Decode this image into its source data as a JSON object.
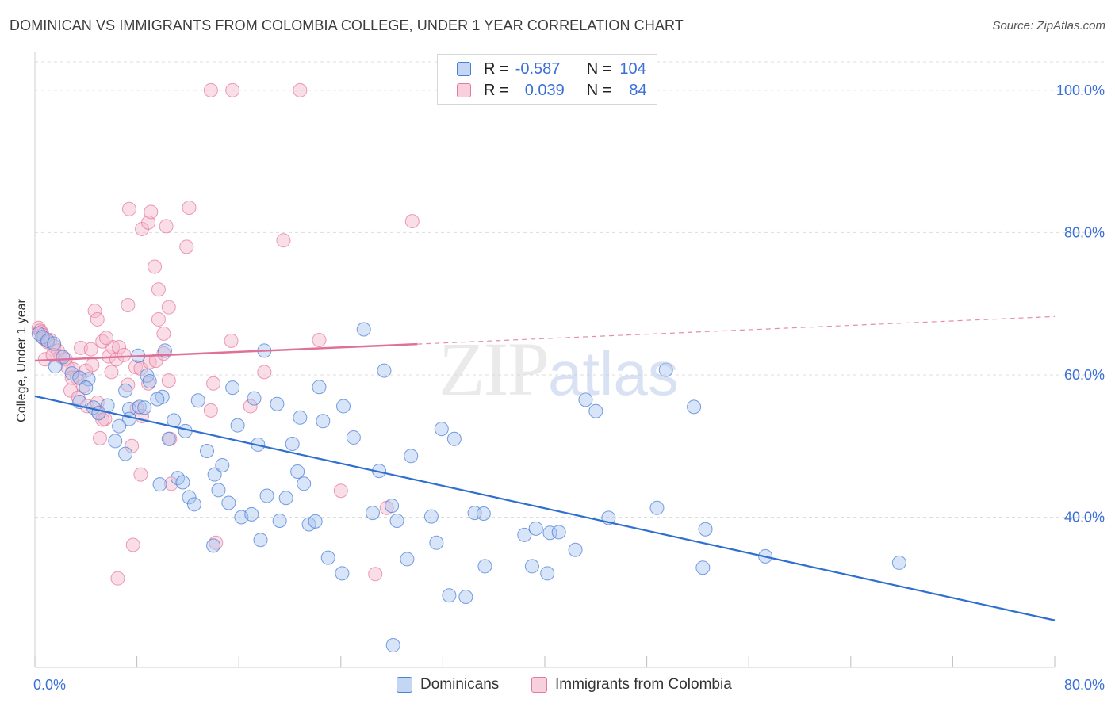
{
  "header": {
    "title": "DOMINICAN VS IMMIGRANTS FROM COLOMBIA COLLEGE, UNDER 1 YEAR CORRELATION CHART",
    "source": "Source: ZipAtlas.com"
  },
  "watermark": {
    "zip": "ZIP",
    "atlas": "atlas"
  },
  "legend": {
    "rows": [
      {
        "r_label": "R =",
        "r_value": "-0.587",
        "n_label": "N =",
        "n_value": "104"
      },
      {
        "r_label": "R =",
        "r_value": "0.039",
        "n_label": "N =",
        "n_value": "84"
      }
    ]
  },
  "colors": {
    "blue": "#4a7fd6",
    "blue_fill": "#a9c4ee",
    "blue_line": "#2f6fd0",
    "pink": "#e57aa0",
    "pink_fill": "#f3b6ca",
    "pink_line": "#e0709a",
    "tick_text": "#3a6fd8",
    "grid": "#dddddd"
  },
  "chart_data": {
    "type": "scatter",
    "title": "DOMINICAN VS IMMIGRANTS FROM COLOMBIA COLLEGE, UNDER 1 YEAR CORRELATION CHART",
    "xlabel": "",
    "ylabel": "College, Under 1 year",
    "xlim": [
      0,
      80
    ],
    "ylim": [
      20,
      104
    ],
    "x_tick_labels": [
      "0.0%",
      "80.0%"
    ],
    "y_ticks": [
      40,
      60,
      80,
      100
    ],
    "y_tick_labels": [
      "40.0%",
      "60.0%",
      "80.0%",
      "100.0%"
    ],
    "grid": true,
    "legend_position": "bottom",
    "series": [
      {
        "name": "Dominicans",
        "color": "#4a7fd6",
        "r": -0.587,
        "n": 104,
        "trend": {
          "x": [
            0,
            80
          ],
          "y": [
            57.0,
            25.5
          ],
          "dashed_from": null
        },
        "points": [
          [
            0.3,
            65.8
          ],
          [
            0.6,
            65.3
          ],
          [
            1.0,
            64.8
          ],
          [
            1.5,
            64.4
          ],
          [
            2.2,
            62.5
          ],
          [
            1.6,
            61.2
          ],
          [
            2.9,
            60.2
          ],
          [
            4.2,
            59.4
          ],
          [
            3.5,
            59.6
          ],
          [
            4.0,
            58.2
          ],
          [
            3.5,
            56.2
          ],
          [
            4.6,
            55.4
          ],
          [
            5.0,
            54.6
          ],
          [
            5.7,
            55.7
          ],
          [
            7.1,
            57.8
          ],
          [
            7.4,
            55.2
          ],
          [
            7.4,
            53.8
          ],
          [
            8.2,
            55.5
          ],
          [
            8.6,
            55.4
          ],
          [
            8.1,
            62.7
          ],
          [
            8.8,
            59.9
          ],
          [
            9.0,
            59.1
          ],
          [
            10.2,
            63.4
          ],
          [
            10.0,
            56.9
          ],
          [
            9.6,
            56.6
          ],
          [
            10.9,
            53.6
          ],
          [
            10.5,
            51.0
          ],
          [
            6.3,
            50.7
          ],
          [
            7.1,
            48.9
          ],
          [
            11.8,
            52.1
          ],
          [
            12.8,
            56.4
          ],
          [
            13.5,
            49.3
          ],
          [
            15.5,
            58.2
          ],
          [
            15.9,
            52.9
          ],
          [
            17.2,
            56.7
          ],
          [
            17.5,
            50.2
          ],
          [
            19.0,
            55.9
          ],
          [
            18.0,
            63.4
          ],
          [
            20.2,
            50.3
          ],
          [
            20.8,
            54.0
          ],
          [
            22.3,
            58.3
          ],
          [
            22.6,
            53.5
          ],
          [
            24.2,
            55.6
          ],
          [
            25.0,
            51.2
          ],
          [
            25.8,
            66.4
          ],
          [
            27.4,
            60.6
          ],
          [
            27.0,
            46.5
          ],
          [
            29.5,
            48.6
          ],
          [
            31.9,
            52.4
          ],
          [
            32.9,
            51.0
          ],
          [
            11.2,
            45.5
          ],
          [
            11.6,
            44.9
          ],
          [
            9.8,
            44.6
          ],
          [
            12.1,
            42.8
          ],
          [
            12.5,
            41.8
          ],
          [
            14.1,
            46.0
          ],
          [
            14.7,
            47.3
          ],
          [
            14.4,
            43.8
          ],
          [
            15.2,
            42.0
          ],
          [
            16.2,
            40.0
          ],
          [
            17.0,
            40.4
          ],
          [
            18.2,
            43.0
          ],
          [
            19.7,
            42.7
          ],
          [
            19.2,
            39.5
          ],
          [
            20.6,
            46.4
          ],
          [
            21.1,
            44.7
          ],
          [
            21.5,
            39.0
          ],
          [
            22.0,
            39.4
          ],
          [
            23.0,
            34.3
          ],
          [
            24.1,
            32.1
          ],
          [
            17.7,
            36.8
          ],
          [
            14.0,
            36.0
          ],
          [
            26.5,
            40.6
          ],
          [
            28.0,
            41.6
          ],
          [
            28.4,
            39.5
          ],
          [
            29.2,
            34.1
          ],
          [
            31.1,
            40.1
          ],
          [
            31.5,
            36.4
          ],
          [
            32.5,
            29.0
          ],
          [
            33.8,
            28.8
          ],
          [
            34.5,
            40.6
          ],
          [
            35.2,
            40.5
          ],
          [
            35.3,
            33.1
          ],
          [
            38.4,
            37.5
          ],
          [
            39.3,
            38.4
          ],
          [
            39.0,
            33.1
          ],
          [
            40.4,
            37.8
          ],
          [
            41.1,
            37.9
          ],
          [
            40.2,
            32.1
          ],
          [
            42.4,
            35.4
          ],
          [
            45.0,
            39.9
          ],
          [
            43.2,
            56.5
          ],
          [
            44.0,
            54.9
          ],
          [
            48.8,
            41.3
          ],
          [
            49.5,
            60.7
          ],
          [
            51.7,
            55.5
          ],
          [
            52.6,
            38.3
          ],
          [
            52.4,
            32.9
          ],
          [
            57.3,
            34.5
          ],
          [
            67.8,
            33.6
          ],
          [
            28.1,
            22.0
          ],
          [
            6.6,
            52.8
          ]
        ]
      },
      {
        "name": "Immigrants from Colombia",
        "color": "#e57aa0",
        "r": 0.039,
        "n": 84,
        "trend": {
          "x": [
            0,
            80
          ],
          "y": [
            62.0,
            68.2
          ],
          "dashed_from": 30
        },
        "points": [
          [
            0.3,
            66.6
          ],
          [
            0.4,
            66.2
          ],
          [
            0.5,
            66.0
          ],
          [
            0.6,
            65.6
          ],
          [
            0.7,
            65.1
          ],
          [
            1.0,
            64.6
          ],
          [
            1.2,
            64.9
          ],
          [
            1.5,
            64.0
          ],
          [
            1.8,
            63.4
          ],
          [
            2.0,
            62.6
          ],
          [
            0.8,
            62.2
          ],
          [
            1.4,
            62.8
          ],
          [
            2.4,
            62.2
          ],
          [
            2.6,
            61.0
          ],
          [
            3.0,
            60.8
          ],
          [
            3.3,
            59.6
          ],
          [
            3.8,
            58.4
          ],
          [
            4.0,
            60.6
          ],
          [
            4.5,
            61.4
          ],
          [
            2.8,
            57.8
          ],
          [
            3.4,
            56.8
          ],
          [
            4.1,
            55.6
          ],
          [
            4.9,
            56.1
          ],
          [
            5.0,
            54.7
          ],
          [
            5.5,
            53.8
          ],
          [
            5.8,
            62.6
          ],
          [
            6.1,
            63.9
          ],
          [
            6.4,
            62.2
          ],
          [
            6.6,
            63.9
          ],
          [
            7.0,
            62.8
          ],
          [
            6.0,
            60.4
          ],
          [
            7.3,
            58.6
          ],
          [
            7.9,
            61.1
          ],
          [
            8.3,
            60.9
          ],
          [
            8.9,
            58.8
          ],
          [
            8.0,
            55.3
          ],
          [
            8.4,
            54.2
          ],
          [
            9.0,
            61.8
          ],
          [
            9.5,
            62.0
          ],
          [
            10.1,
            63.0
          ],
          [
            10.5,
            59.2
          ],
          [
            10.6,
            51.0
          ],
          [
            3.6,
            63.8
          ],
          [
            4.4,
            63.6
          ],
          [
            5.3,
            64.7
          ],
          [
            4.7,
            69.0
          ],
          [
            4.9,
            67.8
          ],
          [
            5.6,
            65.2
          ],
          [
            7.3,
            69.8
          ],
          [
            9.7,
            67.8
          ],
          [
            10.1,
            65.8
          ],
          [
            10.5,
            69.5
          ],
          [
            9.7,
            72.0
          ],
          [
            9.4,
            75.2
          ],
          [
            11.9,
            78.0
          ],
          [
            10.3,
            80.9
          ],
          [
            8.4,
            80.5
          ],
          [
            8.9,
            81.4
          ],
          [
            7.4,
            83.3
          ],
          [
            9.1,
            82.9
          ],
          [
            12.1,
            83.5
          ],
          [
            14.0,
            58.8
          ],
          [
            13.8,
            55.0
          ],
          [
            15.4,
            64.8
          ],
          [
            16.9,
            55.6
          ],
          [
            18.0,
            60.4
          ],
          [
            19.5,
            78.9
          ],
          [
            22.3,
            64.9
          ],
          [
            24.0,
            43.7
          ],
          [
            26.7,
            32.0
          ],
          [
            27.6,
            41.3
          ],
          [
            29.6,
            81.6
          ],
          [
            13.8,
            100.0
          ],
          [
            15.5,
            100.0
          ],
          [
            20.8,
            100.0
          ],
          [
            7.7,
            36.1
          ],
          [
            14.2,
            36.4
          ],
          [
            6.5,
            31.4
          ],
          [
            8.3,
            46.0
          ],
          [
            7.6,
            50.0
          ],
          [
            10.7,
            44.7
          ],
          [
            5.1,
            51.1
          ],
          [
            5.3,
            53.7
          ],
          [
            2.9,
            59.6
          ]
        ]
      }
    ]
  },
  "bottom_legend": [
    {
      "label": "Dominicans"
    },
    {
      "label": "Immigrants from Colombia"
    }
  ]
}
